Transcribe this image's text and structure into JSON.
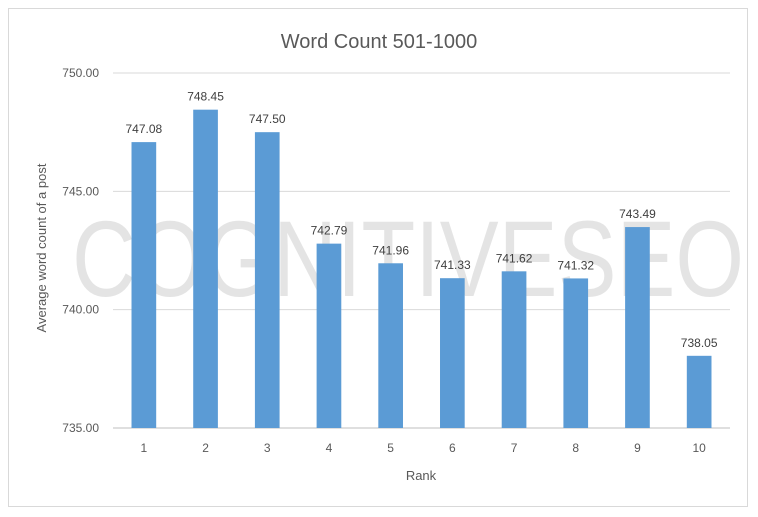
{
  "chart_data": {
    "type": "bar",
    "title": "Word Count 501-1000",
    "xlabel": "Rank",
    "ylabel": "Average word count of a post",
    "categories": [
      "1",
      "2",
      "3",
      "4",
      "5",
      "6",
      "7",
      "8",
      "9",
      "10"
    ],
    "values": [
      747.08,
      748.45,
      747.5,
      742.79,
      741.96,
      741.33,
      741.62,
      741.32,
      743.49,
      738.05
    ],
    "data_labels": [
      "747.08",
      "748.45",
      "747.50",
      "742.79",
      "741.96",
      "741.33",
      "741.62",
      "741.32",
      "743.49",
      "738.05"
    ],
    "ylim": [
      735,
      750
    ],
    "yticks": [
      735,
      740,
      745,
      750
    ],
    "ytick_labels": [
      "735.00",
      "740.00",
      "745.00",
      "750.00"
    ],
    "grid": true,
    "legend": "none",
    "bar_color": "#5b9bd5",
    "watermark": "COGNITIVESEO"
  }
}
